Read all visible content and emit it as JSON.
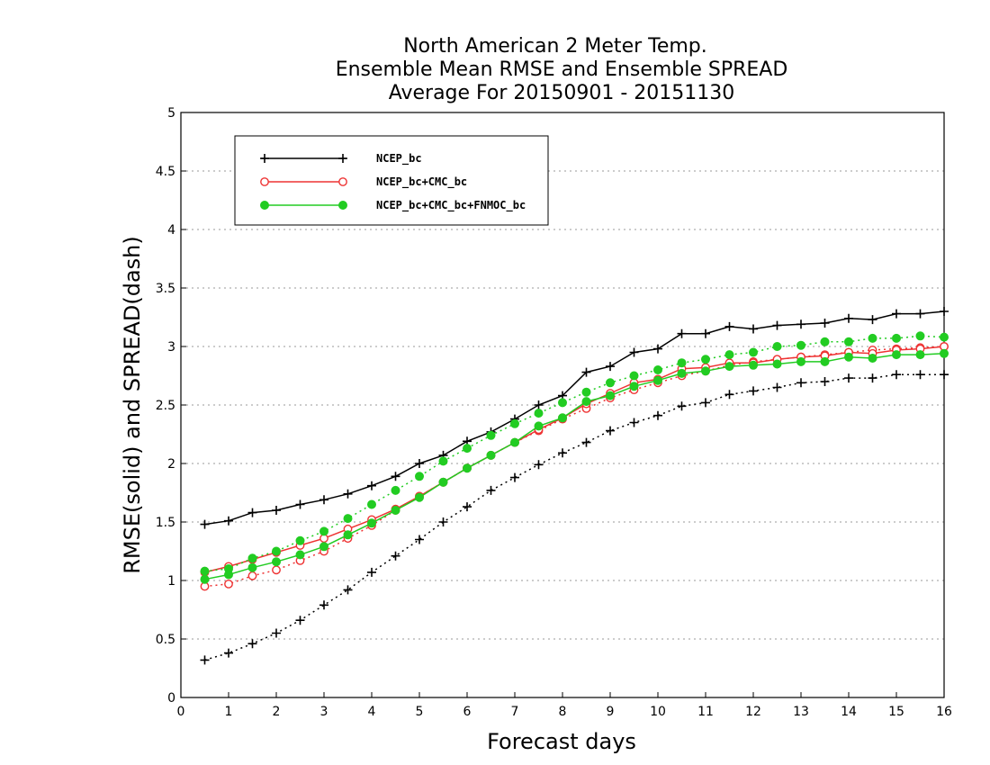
{
  "chart_data": {
    "type": "line",
    "title": [
      "North American 2 Meter Temp.",
      "Ensemble Mean RMSE and Ensemble SPREAD",
      "Average For 20150901 - 20151130"
    ],
    "xlabel": "Forecast days",
    "ylabel": "RMSE(solid) and SPREAD(dash)",
    "xlim": [
      0,
      16
    ],
    "ylim": [
      0,
      5
    ],
    "xticks": [
      "0",
      "1",
      "2",
      "3",
      "4",
      "5",
      "6",
      "7",
      "8",
      "9",
      "10",
      "11",
      "12",
      "13",
      "14",
      "15",
      "16"
    ],
    "yticks": [
      "0",
      "0.5",
      "1",
      "1.5",
      "2",
      "2.5",
      "3",
      "3.5",
      "4",
      "4.5",
      "5"
    ],
    "grid": "horizontal dotted",
    "legend_position": "top-left",
    "x": [
      0.5,
      1,
      1.5,
      2,
      2.5,
      3,
      3.5,
      4,
      4.5,
      5,
      5.5,
      6,
      6.5,
      7,
      7.5,
      8,
      8.5,
      9,
      9.5,
      10,
      10.5,
      11,
      11.5,
      12,
      12.5,
      13,
      13.5,
      14,
      14.5,
      15,
      15.5,
      16
    ],
    "series": [
      {
        "name": "NCEP_bc",
        "color": "#000000",
        "marker": "plus",
        "rmse": [
          1.48,
          1.51,
          1.58,
          1.6,
          1.65,
          1.69,
          1.74,
          1.81,
          1.89,
          2.0,
          2.07,
          2.19,
          2.27,
          2.38,
          2.5,
          2.58,
          2.78,
          2.83,
          2.95,
          2.98,
          3.11,
          3.11,
          3.17,
          3.15,
          3.18,
          3.19,
          3.2,
          3.24,
          3.23,
          3.28,
          3.28,
          3.3
        ],
        "spread": [
          0.32,
          0.38,
          0.46,
          0.55,
          0.66,
          0.79,
          0.92,
          1.07,
          1.21,
          1.35,
          1.5,
          1.63,
          1.77,
          1.88,
          1.99,
          2.09,
          2.18,
          2.28,
          2.35,
          2.41,
          2.49,
          2.52,
          2.59,
          2.62,
          2.65,
          2.69,
          2.7,
          2.73,
          2.73,
          2.76,
          2.76,
          2.76
        ]
      },
      {
        "name": "NCEP_bc+CMC_bc",
        "color": "#ee3333",
        "marker": "open-circle",
        "rmse": [
          1.07,
          1.12,
          1.18,
          1.24,
          1.3,
          1.36,
          1.44,
          1.52,
          1.61,
          1.72,
          1.84,
          1.96,
          2.07,
          2.18,
          2.29,
          2.39,
          2.51,
          2.6,
          2.69,
          2.72,
          2.81,
          2.82,
          2.86,
          2.86,
          2.89,
          2.91,
          2.92,
          2.95,
          2.94,
          2.97,
          2.98,
          3.0
        ],
        "spread": [
          0.95,
          0.97,
          1.04,
          1.09,
          1.17,
          1.25,
          1.36,
          1.47,
          1.6,
          1.72,
          1.84,
          1.96,
          2.07,
          2.18,
          2.28,
          2.38,
          2.47,
          2.56,
          2.63,
          2.69,
          2.75,
          2.79,
          2.84,
          2.87,
          2.89,
          2.91,
          2.93,
          2.95,
          2.97,
          2.98,
          2.99,
          3.0
        ]
      },
      {
        "name": "NCEP_bc+CMC_bc+FNMOC_bc",
        "color": "#22cc22",
        "marker": "filled-circle",
        "rmse": [
          1.01,
          1.05,
          1.11,
          1.16,
          1.22,
          1.29,
          1.39,
          1.49,
          1.6,
          1.71,
          1.84,
          1.96,
          2.07,
          2.18,
          2.32,
          2.39,
          2.53,
          2.58,
          2.66,
          2.71,
          2.77,
          2.79,
          2.83,
          2.84,
          2.85,
          2.87,
          2.87,
          2.91,
          2.9,
          2.93,
          2.93,
          2.94
        ],
        "spread": [
          1.08,
          1.1,
          1.19,
          1.25,
          1.34,
          1.42,
          1.53,
          1.65,
          1.77,
          1.89,
          2.02,
          2.13,
          2.24,
          2.34,
          2.43,
          2.52,
          2.61,
          2.69,
          2.75,
          2.8,
          2.86,
          2.89,
          2.93,
          2.95,
          3.0,
          3.01,
          3.04,
          3.04,
          3.07,
          3.07,
          3.09,
          3.08
        ]
      }
    ]
  }
}
